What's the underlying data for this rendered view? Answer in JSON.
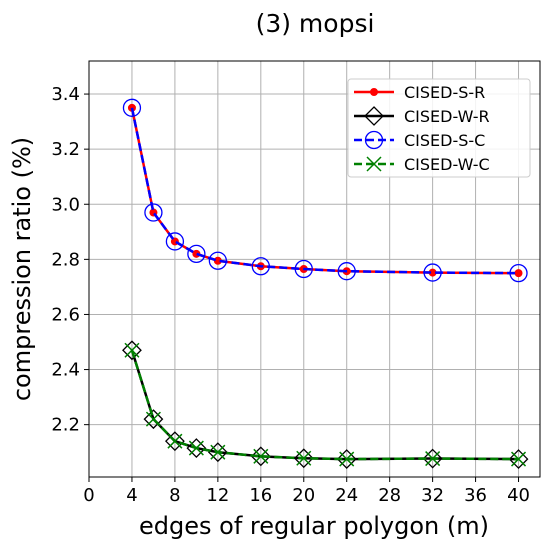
{
  "chart_data": {
    "type": "line",
    "title": "(3) mopsi",
    "xlabel": "edges of regular polygon (m)",
    "ylabel": "compression ratio (%)",
    "xlim": [
      0,
      42
    ],
    "ylim": [
      2.01,
      3.52
    ],
    "xticks": [
      0,
      4,
      8,
      12,
      16,
      20,
      24,
      28,
      32,
      36,
      40
    ],
    "yticks": [
      2.2,
      2.4,
      2.6,
      2.8,
      3.0,
      3.2,
      3.4
    ],
    "grid": true,
    "legend_position": "top-right",
    "x": [
      4,
      6,
      8,
      10,
      12,
      16,
      20,
      24,
      32,
      40
    ],
    "series": [
      {
        "name": "CISED-S-R",
        "color": "#ff0000",
        "dash": "solid",
        "marker": "dot",
        "values": [
          3.35,
          2.97,
          2.865,
          2.82,
          2.795,
          2.775,
          2.765,
          2.757,
          2.752,
          2.75
        ]
      },
      {
        "name": "CISED-W-R",
        "color": "#000000",
        "dash": "solid",
        "marker": "diamond",
        "values": [
          2.47,
          2.22,
          2.14,
          2.115,
          2.1,
          2.085,
          2.078,
          2.075,
          2.077,
          2.075
        ]
      },
      {
        "name": "CISED-S-C",
        "color": "#0000ff",
        "dash": "dashed",
        "marker": "circle",
        "values": [
          3.35,
          2.97,
          2.865,
          2.82,
          2.795,
          2.775,
          2.765,
          2.757,
          2.752,
          2.75
        ]
      },
      {
        "name": "CISED-W-C",
        "color": "#008000",
        "dash": "dashed",
        "marker": "x",
        "values": [
          2.47,
          2.22,
          2.14,
          2.115,
          2.1,
          2.085,
          2.078,
          2.075,
          2.077,
          2.075
        ]
      }
    ]
  }
}
